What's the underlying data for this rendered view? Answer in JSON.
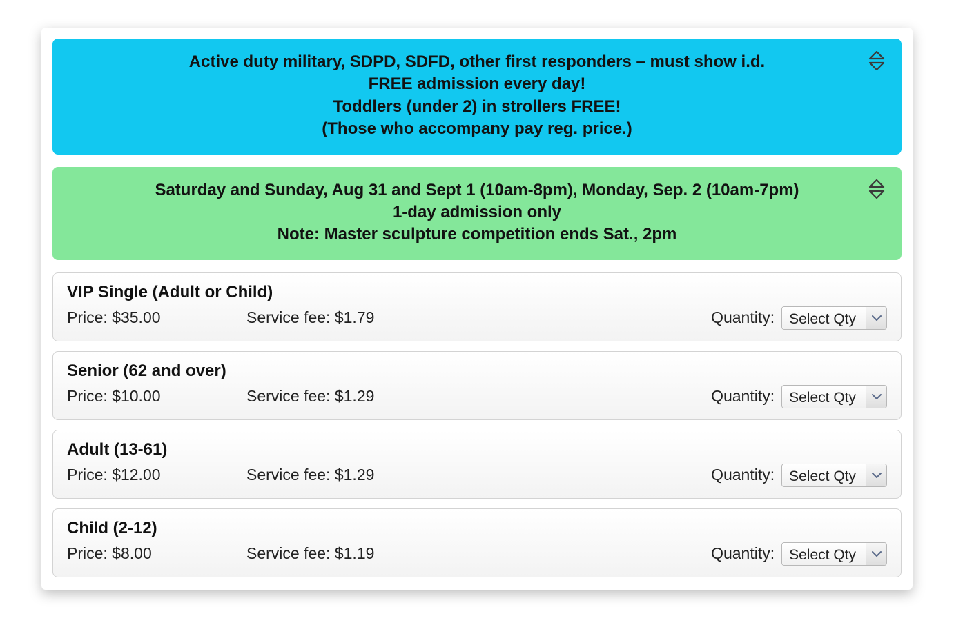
{
  "colors": {
    "banner1_bg": "#12c8f0",
    "banner2_bg": "#84e79a",
    "banner_text": "#121212",
    "ticket_border": "#d3d3d3",
    "ticket_bg_top": "#ffffff",
    "ticket_bg_bottom": "#f3f3f3",
    "select_border": "#b8b8b8",
    "select_btn_top": "#f6f6f6",
    "select_btn_bottom": "#dedede",
    "text": "#222222",
    "icon_fill": "#3a3a3a"
  },
  "labels": {
    "price_prefix": "Price: ",
    "fee_prefix": "Service fee: ",
    "quantity": "Quantity:",
    "select_qty": "Select Qty"
  },
  "banners": [
    {
      "id": "info-free-admission",
      "bg": "#12c8f0",
      "lines": [
        "Active duty military, SDPD, SDFD, other first responders – must show i.d.",
        "FREE admission every day!",
        "Toddlers (under 2) in strollers FREE!",
        "(Those who accompany pay reg. price.)"
      ]
    },
    {
      "id": "info-schedule",
      "bg": "#84e79a",
      "lines": [
        "Saturday and Sunday, Aug 31 and Sept 1 (10am-8pm), Monday, Sep. 2 (10am-7pm)",
        "1-day admission only",
        "Note: Master sculpture competition ends Sat., 2pm"
      ]
    }
  ],
  "tickets": [
    {
      "id": "vip-single",
      "title": "VIP Single (Adult or Child)",
      "price": "$35.00",
      "fee": "$1.79"
    },
    {
      "id": "senior",
      "title": "Senior (62 and over)",
      "price": "$10.00",
      "fee": "$1.29"
    },
    {
      "id": "adult",
      "title": "Adult (13-61)",
      "price": "$12.00",
      "fee": "$1.29"
    },
    {
      "id": "child",
      "title": "Child (2-12)",
      "price": "$8.00",
      "fee": "$1.19"
    }
  ]
}
